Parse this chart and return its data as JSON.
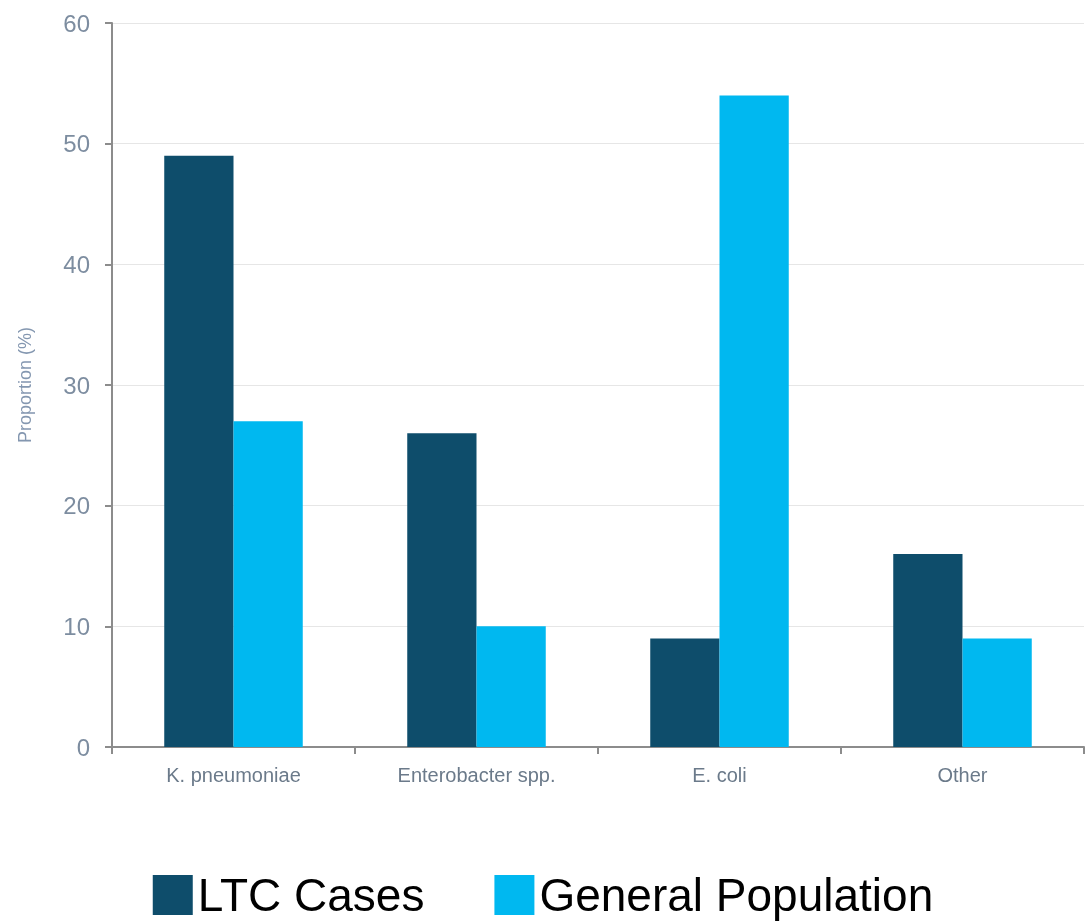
{
  "chart_data": {
    "type": "bar",
    "ylabel": "Proportion (%)",
    "categories": [
      "K. pneumoniae",
      "Enterobacter spp.",
      "E. coli",
      "Other"
    ],
    "series": [
      {
        "name": "LTC Cases",
        "color": "#0e4d6b",
        "values": [
          49,
          26,
          9,
          16
        ]
      },
      {
        "name": "General Population",
        "color": "#00b8f0",
        "values": [
          27,
          10,
          54,
          9
        ]
      }
    ],
    "ylim": [
      0,
      60
    ],
    "yticks": [
      0,
      10,
      20,
      30,
      40,
      50,
      60
    ],
    "grid": "y",
    "legend": "bottom"
  }
}
